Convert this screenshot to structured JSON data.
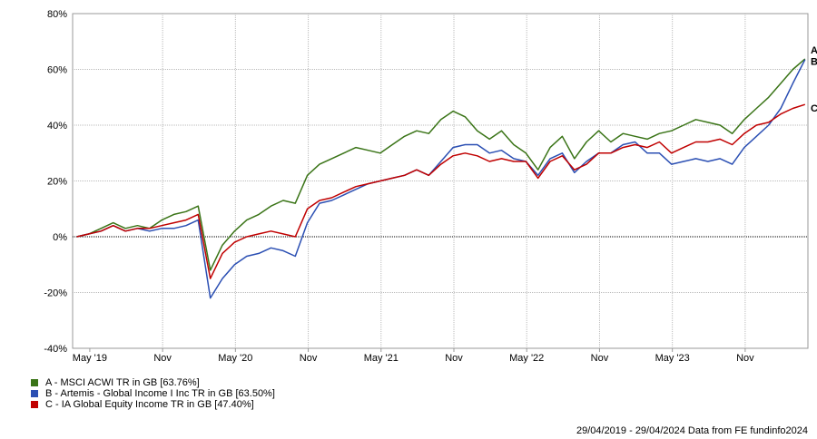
{
  "chart_data": {
    "type": "line",
    "title": "",
    "xlabel": "",
    "ylabel": "",
    "ylim": [
      -40,
      80
    ],
    "yticks": [
      "80%",
      "60%",
      "40%",
      "20%",
      "0%",
      "-20%",
      "-40%"
    ],
    "ytick_values": [
      80,
      60,
      40,
      20,
      0,
      -20,
      -40
    ],
    "xticks": [
      "May '19",
      "Nov",
      "May '20",
      "Nov",
      "May '21",
      "Nov",
      "May '22",
      "Nov",
      "May '23",
      "Nov"
    ],
    "xtick_dates": [
      "2019-05",
      "2019-11",
      "2020-05",
      "2020-11",
      "2021-05",
      "2021-11",
      "2022-05",
      "2022-11",
      "2023-05",
      "2023-11"
    ],
    "grid": true,
    "legend_position": "bottom-left",
    "x": [
      "2019-04",
      "2019-05",
      "2019-06",
      "2019-07",
      "2019-08",
      "2019-09",
      "2019-10",
      "2019-11",
      "2019-12",
      "2020-01",
      "2020-02",
      "2020-03",
      "2020-04",
      "2020-05",
      "2020-06",
      "2020-07",
      "2020-08",
      "2020-09",
      "2020-10",
      "2020-11",
      "2020-12",
      "2021-01",
      "2021-02",
      "2021-03",
      "2021-04",
      "2021-05",
      "2021-06",
      "2021-07",
      "2021-08",
      "2021-09",
      "2021-10",
      "2021-11",
      "2021-12",
      "2022-01",
      "2022-02",
      "2022-03",
      "2022-04",
      "2022-05",
      "2022-06",
      "2022-07",
      "2022-08",
      "2022-09",
      "2022-10",
      "2022-11",
      "2022-12",
      "2023-01",
      "2023-02",
      "2023-03",
      "2023-04",
      "2023-05",
      "2023-06",
      "2023-07",
      "2023-08",
      "2023-09",
      "2023-10",
      "2023-11",
      "2023-12",
      "2024-01",
      "2024-02",
      "2024-03",
      "2024-04"
    ],
    "series": [
      {
        "name": "A - MSCI ACWI TR in GB [63.76%]",
        "tag": "A",
        "color": "#3a7417",
        "values": [
          0,
          1,
          3,
          5,
          3,
          4,
          3,
          6,
          8,
          9,
          11,
          -12,
          -3,
          2,
          6,
          8,
          11,
          13,
          12,
          22,
          26,
          28,
          30,
          32,
          31,
          30,
          33,
          36,
          38,
          37,
          42,
          45,
          43,
          38,
          35,
          38,
          33,
          30,
          24,
          32,
          36,
          28,
          34,
          38,
          34,
          37,
          36,
          35,
          37,
          38,
          40,
          42,
          41,
          40,
          37,
          42,
          46,
          50,
          55,
          60,
          63.76
        ]
      },
      {
        "name": "B - Artemis - Global Income I Inc TR in GB [63.50%]",
        "tag": "B",
        "color": "#2b4fb3",
        "values": [
          0,
          1,
          2,
          4,
          2,
          3,
          2,
          3,
          3,
          4,
          6,
          -22,
          -15,
          -10,
          -7,
          -6,
          -4,
          -5,
          -7,
          5,
          12,
          13,
          15,
          17,
          19,
          20,
          21,
          22,
          24,
          22,
          27,
          32,
          33,
          33,
          30,
          31,
          28,
          27,
          22,
          28,
          30,
          23,
          27,
          30,
          30,
          33,
          34,
          30,
          30,
          26,
          27,
          28,
          27,
          28,
          26,
          32,
          36,
          40,
          46,
          55,
          63.5
        ]
      },
      {
        "name": "C - IA Global Equity Income TR in GB [47.40%]",
        "tag": "C",
        "color": "#c00000",
        "values": [
          0,
          1,
          2,
          4,
          2,
          3,
          3,
          4,
          5,
          6,
          8,
          -15,
          -6,
          -2,
          0,
          1,
          2,
          1,
          0,
          10,
          13,
          14,
          16,
          18,
          19,
          20,
          21,
          22,
          24,
          22,
          26,
          29,
          30,
          29,
          27,
          28,
          27,
          27,
          21,
          27,
          29,
          24,
          26,
          30,
          30,
          32,
          33,
          32,
          34,
          30,
          32,
          34,
          34,
          35,
          33,
          37,
          40,
          41,
          44,
          46,
          47.4
        ]
      }
    ]
  },
  "footer": "29/04/2019 - 29/04/2024 Data from FE fundinfo2024"
}
